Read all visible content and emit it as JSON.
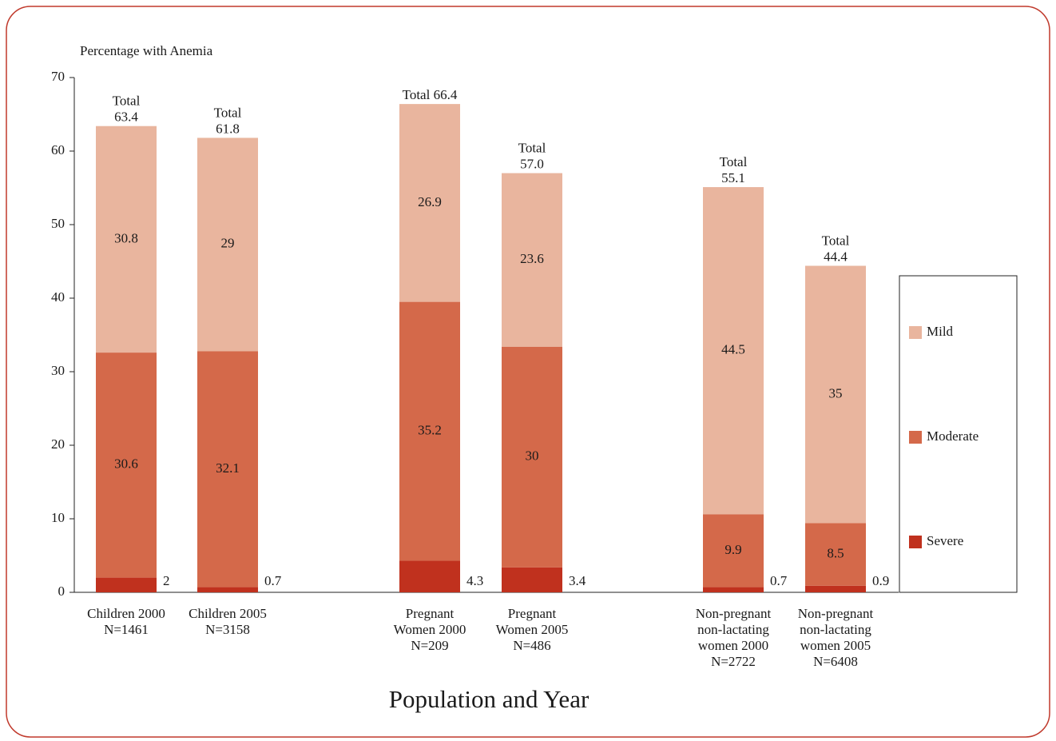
{
  "chart_data": {
    "type": "stacked_bar",
    "y_axis_label": "Percentage with Anemia",
    "x_axis_label": "Population and Year",
    "categories": [
      [
        "Children 2000",
        "N=1461"
      ],
      [
        "Children 2005",
        "N=3158"
      ],
      [
        "Pregnant",
        "Women 2000",
        "N=209"
      ],
      [
        "Pregnant",
        "Women 2005",
        "N=486"
      ],
      [
        "Non-pregnant",
        "non-lactating",
        "women 2000",
        "N=2722"
      ],
      [
        "Non-pregnant",
        "non-lactating",
        "women 2005",
        "N=6408"
      ]
    ],
    "series": [
      {
        "name": "Severe",
        "color": "#c0311e",
        "values": [
          2,
          0.7,
          4.3,
          3.4,
          0.7,
          0.9
        ]
      },
      {
        "name": "Moderate",
        "color": "#d4694a",
        "values": [
          30.6,
          32.1,
          35.2,
          30,
          9.9,
          8.5
        ]
      },
      {
        "name": "Mild",
        "color": "#e9b59e",
        "values": [
          30.8,
          29,
          26.9,
          23.6,
          44.5,
          35
        ]
      }
    ],
    "totals": [
      63.4,
      61.8,
      66.4,
      57.0,
      55.1,
      44.4
    ],
    "total_labels": [
      [
        "Total",
        "63.4"
      ],
      [
        "Total",
        "61.8"
      ],
      [
        "Total 66.4"
      ],
      [
        "Total",
        "57.0"
      ],
      [
        "Total",
        "55.1"
      ],
      [
        "Total",
        "44.4"
      ]
    ],
    "ylim": [
      0,
      70
    ],
    "yticks": [
      0,
      10,
      20,
      30,
      40,
      50,
      60,
      70
    ]
  }
}
